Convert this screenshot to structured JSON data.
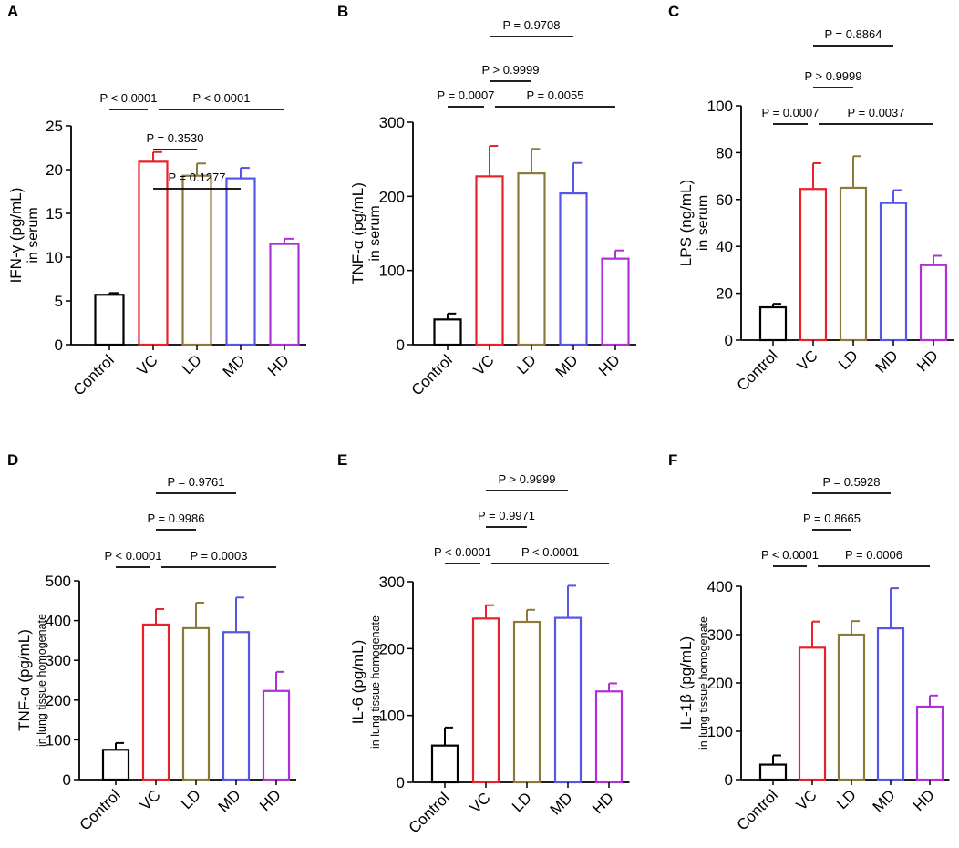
{
  "group_colors": [
    "#000000",
    "#e8202a",
    "#8b7a3a",
    "#5555e6",
    "#b030d8"
  ],
  "chart_data": [
    {
      "panel": "A",
      "type": "bar",
      "categories": [
        "Control",
        "VC",
        "LD",
        "MD",
        "HD"
      ],
      "values": [
        5.7,
        20.9,
        19.3,
        19.0,
        11.5
      ],
      "errors": [
        0.2,
        1.1,
        1.4,
        1.2,
        0.6
      ],
      "ylabel": "IFN-γ (pg/mL)",
      "ylabel2": "in serum",
      "ylim": [
        0,
        25
      ],
      "yticks": [
        0,
        5,
        10,
        15,
        20,
        25
      ],
      "comparisons": [
        {
          "from": 0,
          "to": 1,
          "label": "P < 0.0001"
        },
        {
          "from": 1,
          "to": 4,
          "label": "P < 0.0001"
        },
        {
          "from": 1,
          "to": 2,
          "label": "P = 0.3530"
        },
        {
          "from": 1,
          "to": 3,
          "label": "P = 0.1277"
        }
      ]
    },
    {
      "panel": "B",
      "type": "bar",
      "categories": [
        "Control",
        "VC",
        "LD",
        "MD",
        "HD"
      ],
      "values": [
        34,
        227,
        231,
        204,
        116
      ],
      "errors": [
        8,
        41,
        33,
        41,
        11
      ],
      "ylabel": "TNF-α (pg/mL)",
      "ylabel2": "in serum",
      "ylim": [
        0,
        300
      ],
      "yticks": [
        0,
        100,
        200,
        300
      ],
      "comparisons": [
        {
          "from": 0,
          "to": 1,
          "label": "P = 0.0007"
        },
        {
          "from": 1,
          "to": 4,
          "label": "P = 0.0055"
        },
        {
          "from": 1,
          "to": 2,
          "label": "P > 0.9999"
        },
        {
          "from": 1,
          "to": 3,
          "label": "P = 0.9708"
        }
      ]
    },
    {
      "panel": "C",
      "type": "bar",
      "categories": [
        "Control",
        "VC",
        "LD",
        "MD",
        "HD"
      ],
      "values": [
        14,
        64.5,
        65,
        58.5,
        32
      ],
      "errors": [
        1.5,
        11,
        13.5,
        5.5,
        4
      ],
      "ylabel": "LPS (ng/mL)",
      "ylabel2": "in serum",
      "ylim": [
        0,
        100
      ],
      "yticks": [
        0,
        20,
        40,
        60,
        80,
        100
      ],
      "comparisons": [
        {
          "from": 0,
          "to": 1,
          "label": "P = 0.0007"
        },
        {
          "from": 1,
          "to": 4,
          "label": "P = 0.0037"
        },
        {
          "from": 1,
          "to": 2,
          "label": "P > 0.9999"
        },
        {
          "from": 1,
          "to": 3,
          "label": "P = 0.8864"
        }
      ]
    },
    {
      "panel": "D",
      "type": "bar",
      "categories": [
        "Control",
        "VC",
        "LD",
        "MD",
        "HD"
      ],
      "values": [
        75,
        390,
        381,
        371,
        223
      ],
      "errors": [
        17,
        39,
        64,
        87,
        48
      ],
      "ylabel": "TNF-α (pg/mL)",
      "ylabel2": "in lung tissue homogenate",
      "ylim": [
        0,
        500
      ],
      "yticks": [
        0,
        100,
        200,
        300,
        400,
        500
      ],
      "comparisons": [
        {
          "from": 0,
          "to": 1,
          "label": "P < 0.0001"
        },
        {
          "from": 1,
          "to": 4,
          "label": "P = 0.0003"
        },
        {
          "from": 1,
          "to": 2,
          "label": "P = 0.9986"
        },
        {
          "from": 1,
          "to": 3,
          "label": "P = 0.9761"
        }
      ]
    },
    {
      "panel": "E",
      "type": "bar",
      "categories": [
        "Control",
        "VC",
        "LD",
        "MD",
        "HD"
      ],
      "values": [
        55,
        245,
        240,
        246,
        136
      ],
      "errors": [
        27,
        20,
        18,
        48,
        12
      ],
      "ylabel": "IL-6 (pg/mL)",
      "ylabel2": "in lung tissue homogenate",
      "ylim": [
        0,
        300
      ],
      "yticks": [
        0,
        100,
        200,
        300
      ],
      "comparisons": [
        {
          "from": 0,
          "to": 1,
          "label": "P < 0.0001"
        },
        {
          "from": 1,
          "to": 4,
          "label": "P < 0.0001"
        },
        {
          "from": 1,
          "to": 2,
          "label": "P = 0.9971"
        },
        {
          "from": 1,
          "to": 3,
          "label": "P > 0.9999"
        }
      ]
    },
    {
      "panel": "F",
      "type": "bar",
      "categories": [
        "Control",
        "VC",
        "LD",
        "MD",
        "HD"
      ],
      "values": [
        31,
        273,
        300,
        313,
        151
      ],
      "errors": [
        19,
        54,
        28,
        83,
        23
      ],
      "ylabel": "IL-1β (pg/mL)",
      "ylabel2": "in lung tissue homogenate",
      "ylim": [
        0,
        400
      ],
      "yticks": [
        0,
        100,
        200,
        300,
        400
      ],
      "comparisons": [
        {
          "from": 0,
          "to": 1,
          "label": "P < 0.0001"
        },
        {
          "from": 1,
          "to": 4,
          "label": "P = 0.0006"
        },
        {
          "from": 1,
          "to": 2,
          "label": "P = 0.8665"
        },
        {
          "from": 1,
          "to": 3,
          "label": "P = 0.5928"
        }
      ]
    }
  ]
}
